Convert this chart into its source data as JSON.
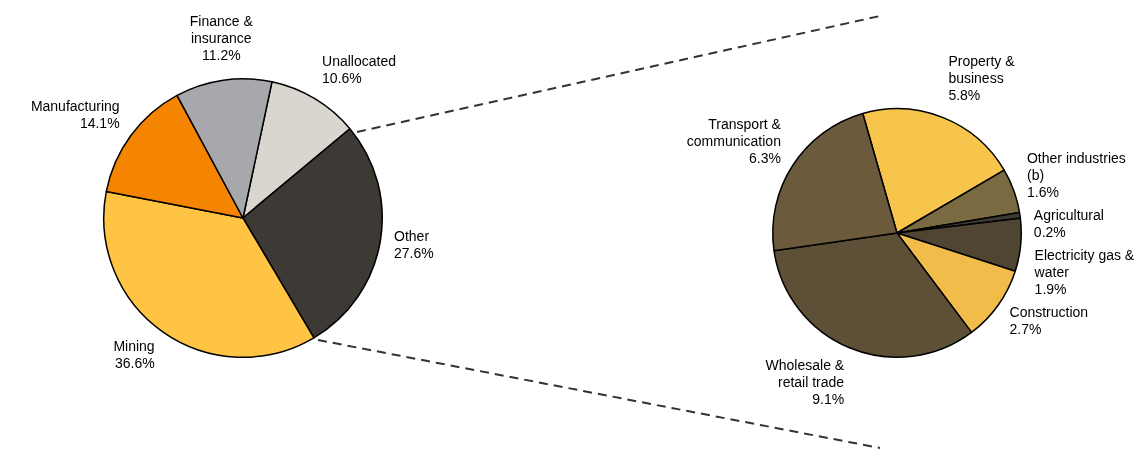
{
  "chart_data": [
    {
      "type": "pie",
      "categories": [
        "Unallocated",
        "Other",
        "Mining",
        "Manufacturing",
        "Finance & insurance"
      ],
      "values": [
        10.6,
        27.6,
        36.6,
        14.1,
        11.2
      ],
      "colors": [
        "#d9d5cf",
        "#3d3935",
        "#ffc444",
        "#f58400",
        "#a6a8ab"
      ],
      "value_labels": [
        "10.6%",
        "27.6%",
        "36.6%",
        "14.1%",
        "11.2%"
      ]
    },
    {
      "type": "pie",
      "categories": [
        "Property & business",
        "Other industries (b)",
        "Agricultural",
        "Electricity gas & water",
        "Construction",
        "Wholesale & retail trade",
        "Transport & communication"
      ],
      "values": [
        5.8,
        1.6,
        0.2,
        1.9,
        2.7,
        9.1,
        6.3
      ],
      "colors": [
        "#f7c44c",
        "#7a6a42",
        "#3d3935",
        "#4f4532",
        "#f2bc4a",
        "#5e5036",
        "#6b5a3c"
      ],
      "value_labels": [
        "5.8%",
        "1.6%",
        "0.2%",
        "1.9%",
        "2.7%",
        "9.1%",
        "6.3%"
      ]
    }
  ]
}
